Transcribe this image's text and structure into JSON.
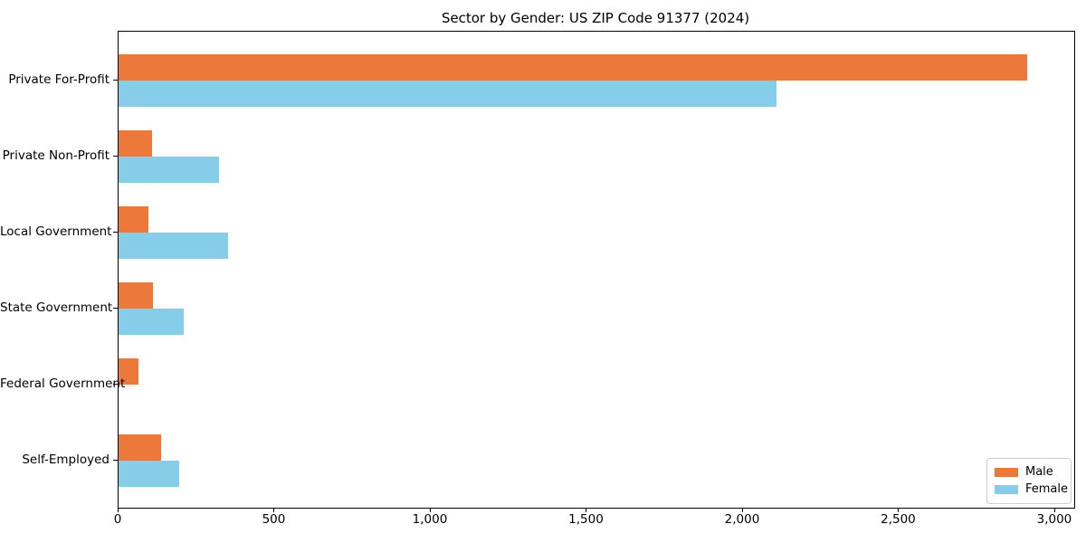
{
  "chart_data": {
    "type": "bar",
    "orientation": "horizontal",
    "title": "Sector by Gender: US ZIP Code 91377 (2024)",
    "categories": [
      "Private For-Profit",
      "Private Non-Profit",
      "Local Government",
      "State Government",
      "Federal Government",
      "Self-Employed"
    ],
    "series": [
      {
        "name": "Male",
        "color": "#EC7839",
        "values": [
          2910,
          107,
          96,
          109,
          63,
          136
        ]
      },
      {
        "name": "Female",
        "color": "#85CDE9",
        "values": [
          2108,
          321,
          350,
          208,
          0,
          194
        ]
      }
    ],
    "xlabel": "",
    "ylabel": "",
    "xlim": [
      0,
      3061
    ],
    "xticks": [
      0,
      500,
      1000,
      1500,
      2000,
      2500,
      3000
    ],
    "xtick_labels": [
      "0",
      "500",
      "1,000",
      "1,500",
      "2,000",
      "2,500",
      "3,000"
    ],
    "grid": false,
    "legend_position": "lower right",
    "background_color": "#ffffff",
    "spine_color": "#000000"
  }
}
